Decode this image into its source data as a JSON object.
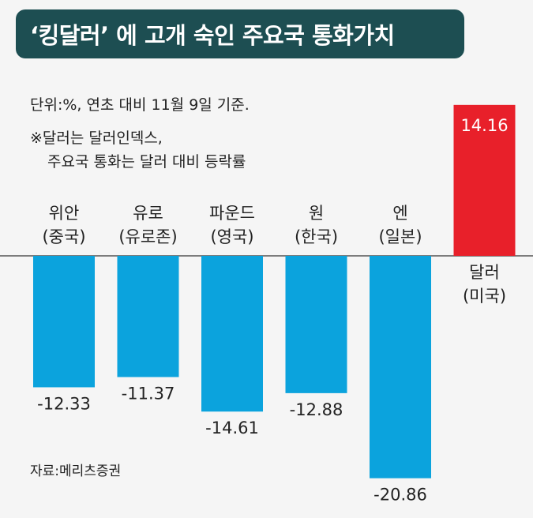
{
  "header": {
    "title": "‘킹달러’ 에 고개 숙인 주요국 통화가치"
  },
  "notes": {
    "unit": "단위:%, 연초 대비 11월 9일 기준.",
    "remark_line1": "※달러는 달러인덱스,",
    "remark_line2": "주요국 통화는 달러 대비 등락률"
  },
  "source": "자료:메리츠증권",
  "colors": {
    "negative_bar": "#0ba3dd",
    "positive_bar": "#e8202a",
    "title_bg": "#1d4e52"
  },
  "chart_data": {
    "type": "bar",
    "title": "‘킹달러’ 에 고개 숙인 주요국 통화가치",
    "categories": [
      [
        "위안",
        "(중국)"
      ],
      [
        "유로",
        "(유로존)"
      ],
      [
        "파운드",
        "(영국)"
      ],
      [
        "원",
        "(한국)"
      ],
      [
        "엔",
        "(일본)"
      ],
      [
        "달러",
        "(미국)"
      ]
    ],
    "values": [
      -12.33,
      -11.37,
      -14.61,
      -12.88,
      -20.86,
      14.16
    ],
    "value_labels": [
      "-12.33",
      "-11.37",
      "-14.61",
      "-12.88",
      "-20.86",
      "14.16"
    ],
    "ylabel": "%",
    "xlabel": "",
    "ylim": [
      -20.86,
      14.16
    ]
  }
}
